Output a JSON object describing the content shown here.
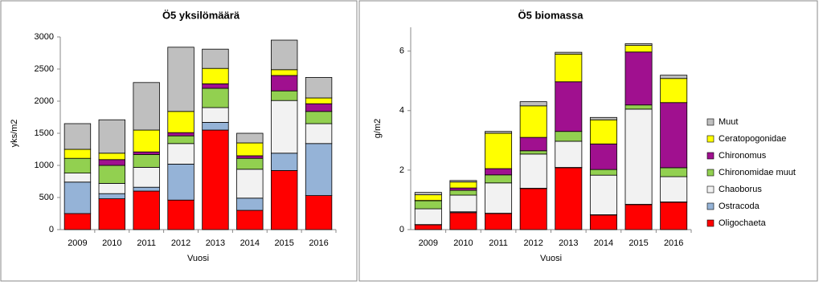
{
  "chart_data": [
    {
      "type": "stacked-bar",
      "title": "Ö5 yksilömäärä",
      "y_label": "yks/m2",
      "x_label": "Vuosi",
      "categories": [
        "2009",
        "2010",
        "2011",
        "2012",
        "2013",
        "2014",
        "2015",
        "2016"
      ],
      "ylim": [
        0,
        3000
      ],
      "yticks": [
        0,
        500,
        1000,
        1500,
        2000,
        2500,
        3000
      ],
      "series": [
        {
          "color": "#ff0000",
          "values": [
            250,
            480,
            600,
            460,
            1550,
            300,
            920,
            530
          ]
        },
        {
          "color": "#95b3d7",
          "values": [
            490,
            80,
            60,
            560,
            120,
            190,
            270,
            810
          ]
        },
        {
          "color": "#f2f2f2",
          "values": [
            140,
            160,
            310,
            320,
            230,
            450,
            820,
            310
          ]
        },
        {
          "color": "#92d050",
          "values": [
            230,
            280,
            200,
            120,
            300,
            170,
            150,
            190
          ]
        },
        {
          "color": "#a0108f",
          "values": [
            0,
            90,
            40,
            50,
            70,
            40,
            240,
            120
          ]
        },
        {
          "color": "#ffff00",
          "values": [
            140,
            100,
            340,
            330,
            240,
            200,
            90,
            90
          ]
        },
        {
          "color": "#bfbfbf",
          "values": [
            400,
            520,
            740,
            1000,
            300,
            150,
            460,
            320
          ]
        }
      ]
    },
    {
      "type": "stacked-bar",
      "title": "Ö5 biomassa",
      "y_label": "g/m2",
      "x_label": "Vuosi",
      "categories": [
        "2009",
        "2010",
        "2011",
        "2012",
        "2013",
        "2014",
        "2015",
        "2016"
      ],
      "ylim": [
        0,
        6.8
      ],
      "yticks": [
        0,
        2,
        4,
        6
      ],
      "legend": "right",
      "series": [
        {
          "name": "Oligochaeta",
          "color": "#ff0000",
          "values": [
            0.16,
            0.57,
            0.54,
            1.38,
            2.08,
            0.49,
            0.84,
            0.92
          ]
        },
        {
          "name": "Ostracoda",
          "color": "#95b3d7",
          "values": [
            0.01,
            0.03,
            0.01,
            0.01,
            0.01,
            0.01,
            0.01,
            0.01
          ]
        },
        {
          "name": "Chaoborus",
          "color": "#f2f2f2",
          "values": [
            0.53,
            0.56,
            1.02,
            1.15,
            0.88,
            1.33,
            3.2,
            0.85
          ]
        },
        {
          "name": "Chironomidae muut",
          "color": "#92d050",
          "values": [
            0.27,
            0.16,
            0.27,
            0.11,
            0.33,
            0.19,
            0.14,
            0.3
          ]
        },
        {
          "name": "Chironomus",
          "color": "#a0108f",
          "values": [
            0.01,
            0.08,
            0.21,
            0.45,
            1.67,
            0.86,
            1.78,
            2.19
          ]
        },
        {
          "name": "Ceratopogonidae",
          "color": "#ffff00",
          "values": [
            0.19,
            0.2,
            1.19,
            1.06,
            0.93,
            0.81,
            0.22,
            0.81
          ]
        },
        {
          "name": "Muut",
          "color": "#bfbfbf",
          "values": [
            0.08,
            0.05,
            0.06,
            0.14,
            0.06,
            0.08,
            0.06,
            0.11
          ]
        }
      ]
    }
  ]
}
